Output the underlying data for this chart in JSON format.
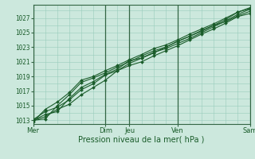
{
  "title": "",
  "xlabel": "Pression niveau de la mer( hPa )",
  "ylabel": "",
  "bg_color": "#cce8dd",
  "grid_color": "#99ccbb",
  "line_color": "#1a5c2a",
  "major_vline_color": "#336644",
  "ylim": [
    1012.5,
    1028.8
  ],
  "yticks": [
    1013,
    1015,
    1017,
    1019,
    1021,
    1023,
    1025,
    1027
  ],
  "xtick_labels": [
    "Mer",
    "",
    "",
    "Dim",
    "Jeu",
    "",
    "Ven",
    "",
    "",
    "Sam"
  ],
  "xtick_positions": [
    0,
    1,
    2,
    3,
    4,
    5,
    6,
    7,
    8,
    9
  ],
  "x_total": 9,
  "lines": [
    [
      1013.0,
      1013.5,
      1014.5,
      1015.2,
      1016.5,
      1017.5,
      1018.5,
      1019.8,
      1020.8,
      1021.5,
      1022.3,
      1022.8,
      1023.5,
      1024.2,
      1025.0,
      1025.8,
      1026.6,
      1027.5,
      1028.2
    ],
    [
      1013.1,
      1014.2,
      1014.8,
      1015.8,
      1017.2,
      1018.0,
      1019.2,
      1019.8,
      1020.5,
      1021.0,
      1021.8,
      1022.5,
      1023.2,
      1024.0,
      1024.8,
      1025.5,
      1026.3,
      1027.2,
      1027.6
    ],
    [
      1013.0,
      1013.2,
      1015.0,
      1016.5,
      1018.2,
      1018.8,
      1019.5,
      1020.3,
      1021.0,
      1021.8,
      1022.5,
      1023.0,
      1023.8,
      1024.5,
      1025.3,
      1026.0,
      1026.8,
      1027.8,
      1028.3
    ],
    [
      1013.0,
      1013.8,
      1014.2,
      1016.0,
      1017.5,
      1018.3,
      1019.3,
      1020.0,
      1021.2,
      1021.5,
      1022.2,
      1023.0,
      1023.8,
      1024.5,
      1025.2,
      1026.0,
      1026.5,
      1027.3,
      1027.9
    ],
    [
      1012.8,
      1014.5,
      1015.5,
      1016.8,
      1018.5,
      1019.0,
      1019.8,
      1020.5,
      1021.3,
      1022.0,
      1022.8,
      1023.3,
      1024.0,
      1024.8,
      1025.5,
      1026.2,
      1027.0,
      1027.8,
      1028.4
    ]
  ],
  "n_points": 19,
  "day_vlines_x": [
    0,
    3,
    4,
    6,
    9
  ],
  "xlabel_fontsize": 7,
  "ytick_fontsize": 5.5,
  "xtick_fontsize": 6.0
}
